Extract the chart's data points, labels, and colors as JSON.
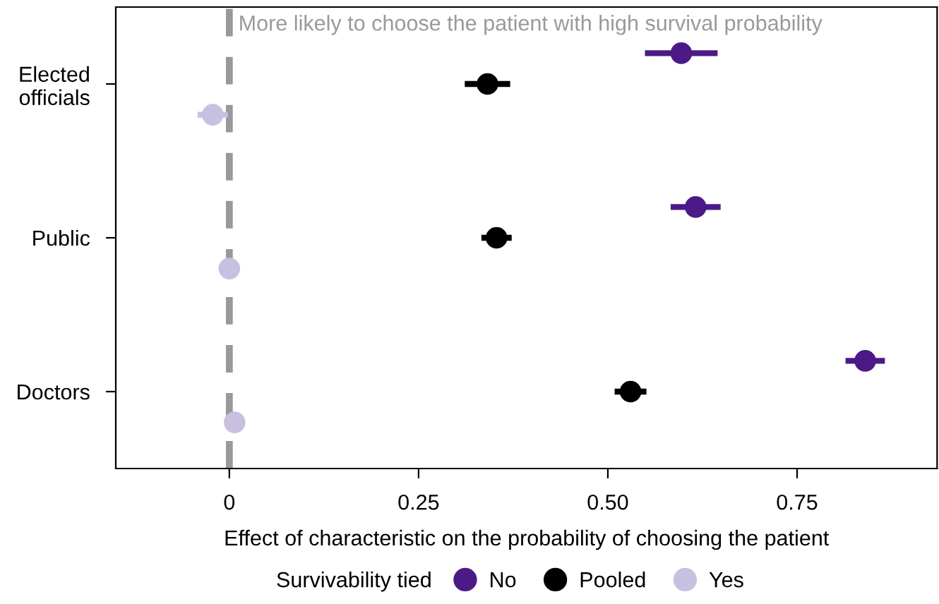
{
  "chart_data": {
    "type": "scatter",
    "orientation": "horizontal",
    "categories": [
      "Elected\nofficials",
      "Public",
      "Doctors"
    ],
    "xlabel": "Effect of characteristic on the probability of choosing the patient",
    "legend_title": "Survivability tied",
    "legend": "bottom",
    "marker": "circle",
    "grid": false,
    "xlim": [
      -0.15,
      0.935
    ],
    "xticks": [
      0,
      0.25,
      {
        "value": 0.5,
        "label": "0.50"
      },
      0.75
    ],
    "ref_lines": [
      {
        "axis": "x",
        "value": 0,
        "color": "#999999",
        "line_style": "dashed"
      }
    ],
    "annotations": [
      "More likely to choose the patient with high survival probability"
    ],
    "series": [
      {
        "name": "No",
        "color": "#4b1a87",
        "values": [
          0.597,
          0.616,
          0.84
        ],
        "errors": [
          0.048,
          0.033,
          0.026
        ]
      },
      {
        "name": "Pooled",
        "color": "#000000",
        "values": [
          0.341,
          0.353,
          0.53
        ],
        "errors": [
          0.03,
          0.02,
          0.021
        ]
      },
      {
        "name": "Yes",
        "color": "#c7c0e0",
        "values": [
          -0.022,
          0.0,
          0.007
        ],
        "errors": [
          0.02,
          0.005,
          0.005
        ]
      }
    ]
  }
}
